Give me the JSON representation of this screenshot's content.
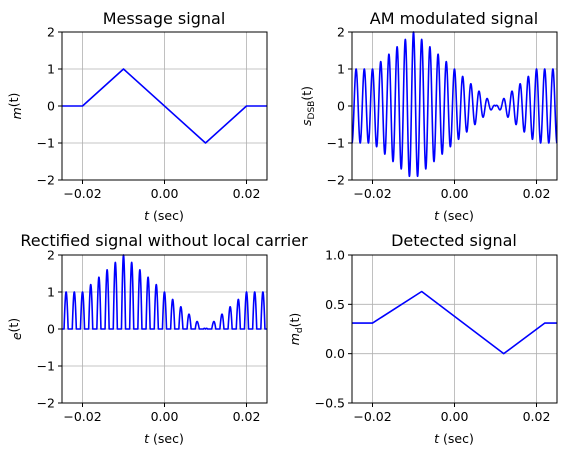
{
  "figure": {
    "background": "#ffffff",
    "line_color": "#0000ff",
    "grid_color": "#b0b0b0"
  },
  "chart_data": [
    {
      "type": "line",
      "title": "Message signal",
      "xlabel_main": "t",
      "xlabel_unit": " (sec)",
      "ylabel_main": "m",
      "ylabel_sub": "",
      "ylabel_tail": "(t)",
      "xlim": [
        -0.025,
        0.025
      ],
      "ylim": [
        -2,
        2
      ],
      "xticks": [
        -0.02,
        0.0,
        0.02
      ],
      "xtick_labels": [
        "−0.02",
        "0.00",
        "0.02"
      ],
      "yticks": [
        -2,
        -1,
        0,
        1,
        2
      ],
      "ytick_labels": [
        "−2",
        "−1",
        "0",
        "1",
        "2"
      ],
      "grid": true,
      "series": [
        {
          "x": [
            -0.025,
            -0.02,
            -0.01,
            0.01,
            0.02,
            0.025
          ],
          "y": [
            0,
            0,
            1,
            -1,
            0,
            0
          ]
        }
      ]
    },
    {
      "type": "line",
      "title": "AM modulated signal",
      "xlabel_main": "t",
      "xlabel_unit": " (sec)",
      "ylabel_main": "s",
      "ylabel_sub": "DSB",
      "ylabel_tail": "(t)",
      "xlim": [
        -0.025,
        0.025
      ],
      "ylim": [
        -2,
        2
      ],
      "xticks": [
        -0.02,
        0.0,
        0.02
      ],
      "xtick_labels": [
        "−0.02",
        "0.00",
        "0.02"
      ],
      "yticks": [
        -2,
        -1,
        0,
        1,
        2
      ],
      "ytick_labels": [
        "−2",
        "−1",
        "0",
        "1",
        "2"
      ],
      "grid": true,
      "carrier_hz": 500,
      "signal": "(1 + m(t)) * cos(2*pi*500*t)",
      "series": [
        {
          "x": [
            -0.025,
            -0.02,
            -0.01,
            0.01,
            0.02,
            0.025
          ],
          "envelope": [
            1,
            1,
            2,
            0,
            1,
            1
          ]
        }
      ]
    },
    {
      "type": "line",
      "title": "Rectified signal without local carrier",
      "xlabel_main": "t",
      "xlabel_unit": " (sec)",
      "ylabel_main": "e",
      "ylabel_sub": "",
      "ylabel_tail": "(t)",
      "xlim": [
        -0.025,
        0.025
      ],
      "ylim": [
        -2,
        2
      ],
      "xticks": [
        -0.02,
        0.0,
        0.02
      ],
      "xtick_labels": [
        "−0.02",
        "0.00",
        "0.02"
      ],
      "yticks": [
        -2,
        -1,
        0,
        1,
        2
      ],
      "ytick_labels": [
        "−2",
        "−1",
        "0",
        "1",
        "2"
      ],
      "grid": true,
      "carrier_hz": 500,
      "signal": "max(0, (1 + m(t)) * cos(2*pi*500*t))",
      "series": [
        {
          "x": [
            -0.025,
            -0.02,
            -0.01,
            0.01,
            0.02,
            0.025
          ],
          "envelope": [
            1,
            1,
            2,
            0,
            1,
            1
          ]
        }
      ]
    },
    {
      "type": "line",
      "title": "Detected signal",
      "xlabel_main": "t",
      "xlabel_unit": " (sec)",
      "ylabel_main": "m",
      "ylabel_sub": "d",
      "ylabel_tail": "(t)",
      "xlim": [
        -0.025,
        0.025
      ],
      "ylim": [
        -0.5,
        1.0
      ],
      "xticks": [
        -0.02,
        0.0,
        0.02
      ],
      "xtick_labels": [
        "−0.02",
        "0.00",
        "0.02"
      ],
      "yticks": [
        -0.5,
        0.0,
        0.5,
        1.0
      ],
      "ytick_labels": [
        "−0.5",
        "0.0",
        "0.5",
        "1.0"
      ],
      "grid": true,
      "series": [
        {
          "x": [
            -0.025,
            -0.02,
            -0.008,
            0.012,
            0.022,
            0.025
          ],
          "y": [
            0.31,
            0.31,
            0.63,
            0.0,
            0.31,
            0.31
          ]
        }
      ]
    }
  ]
}
